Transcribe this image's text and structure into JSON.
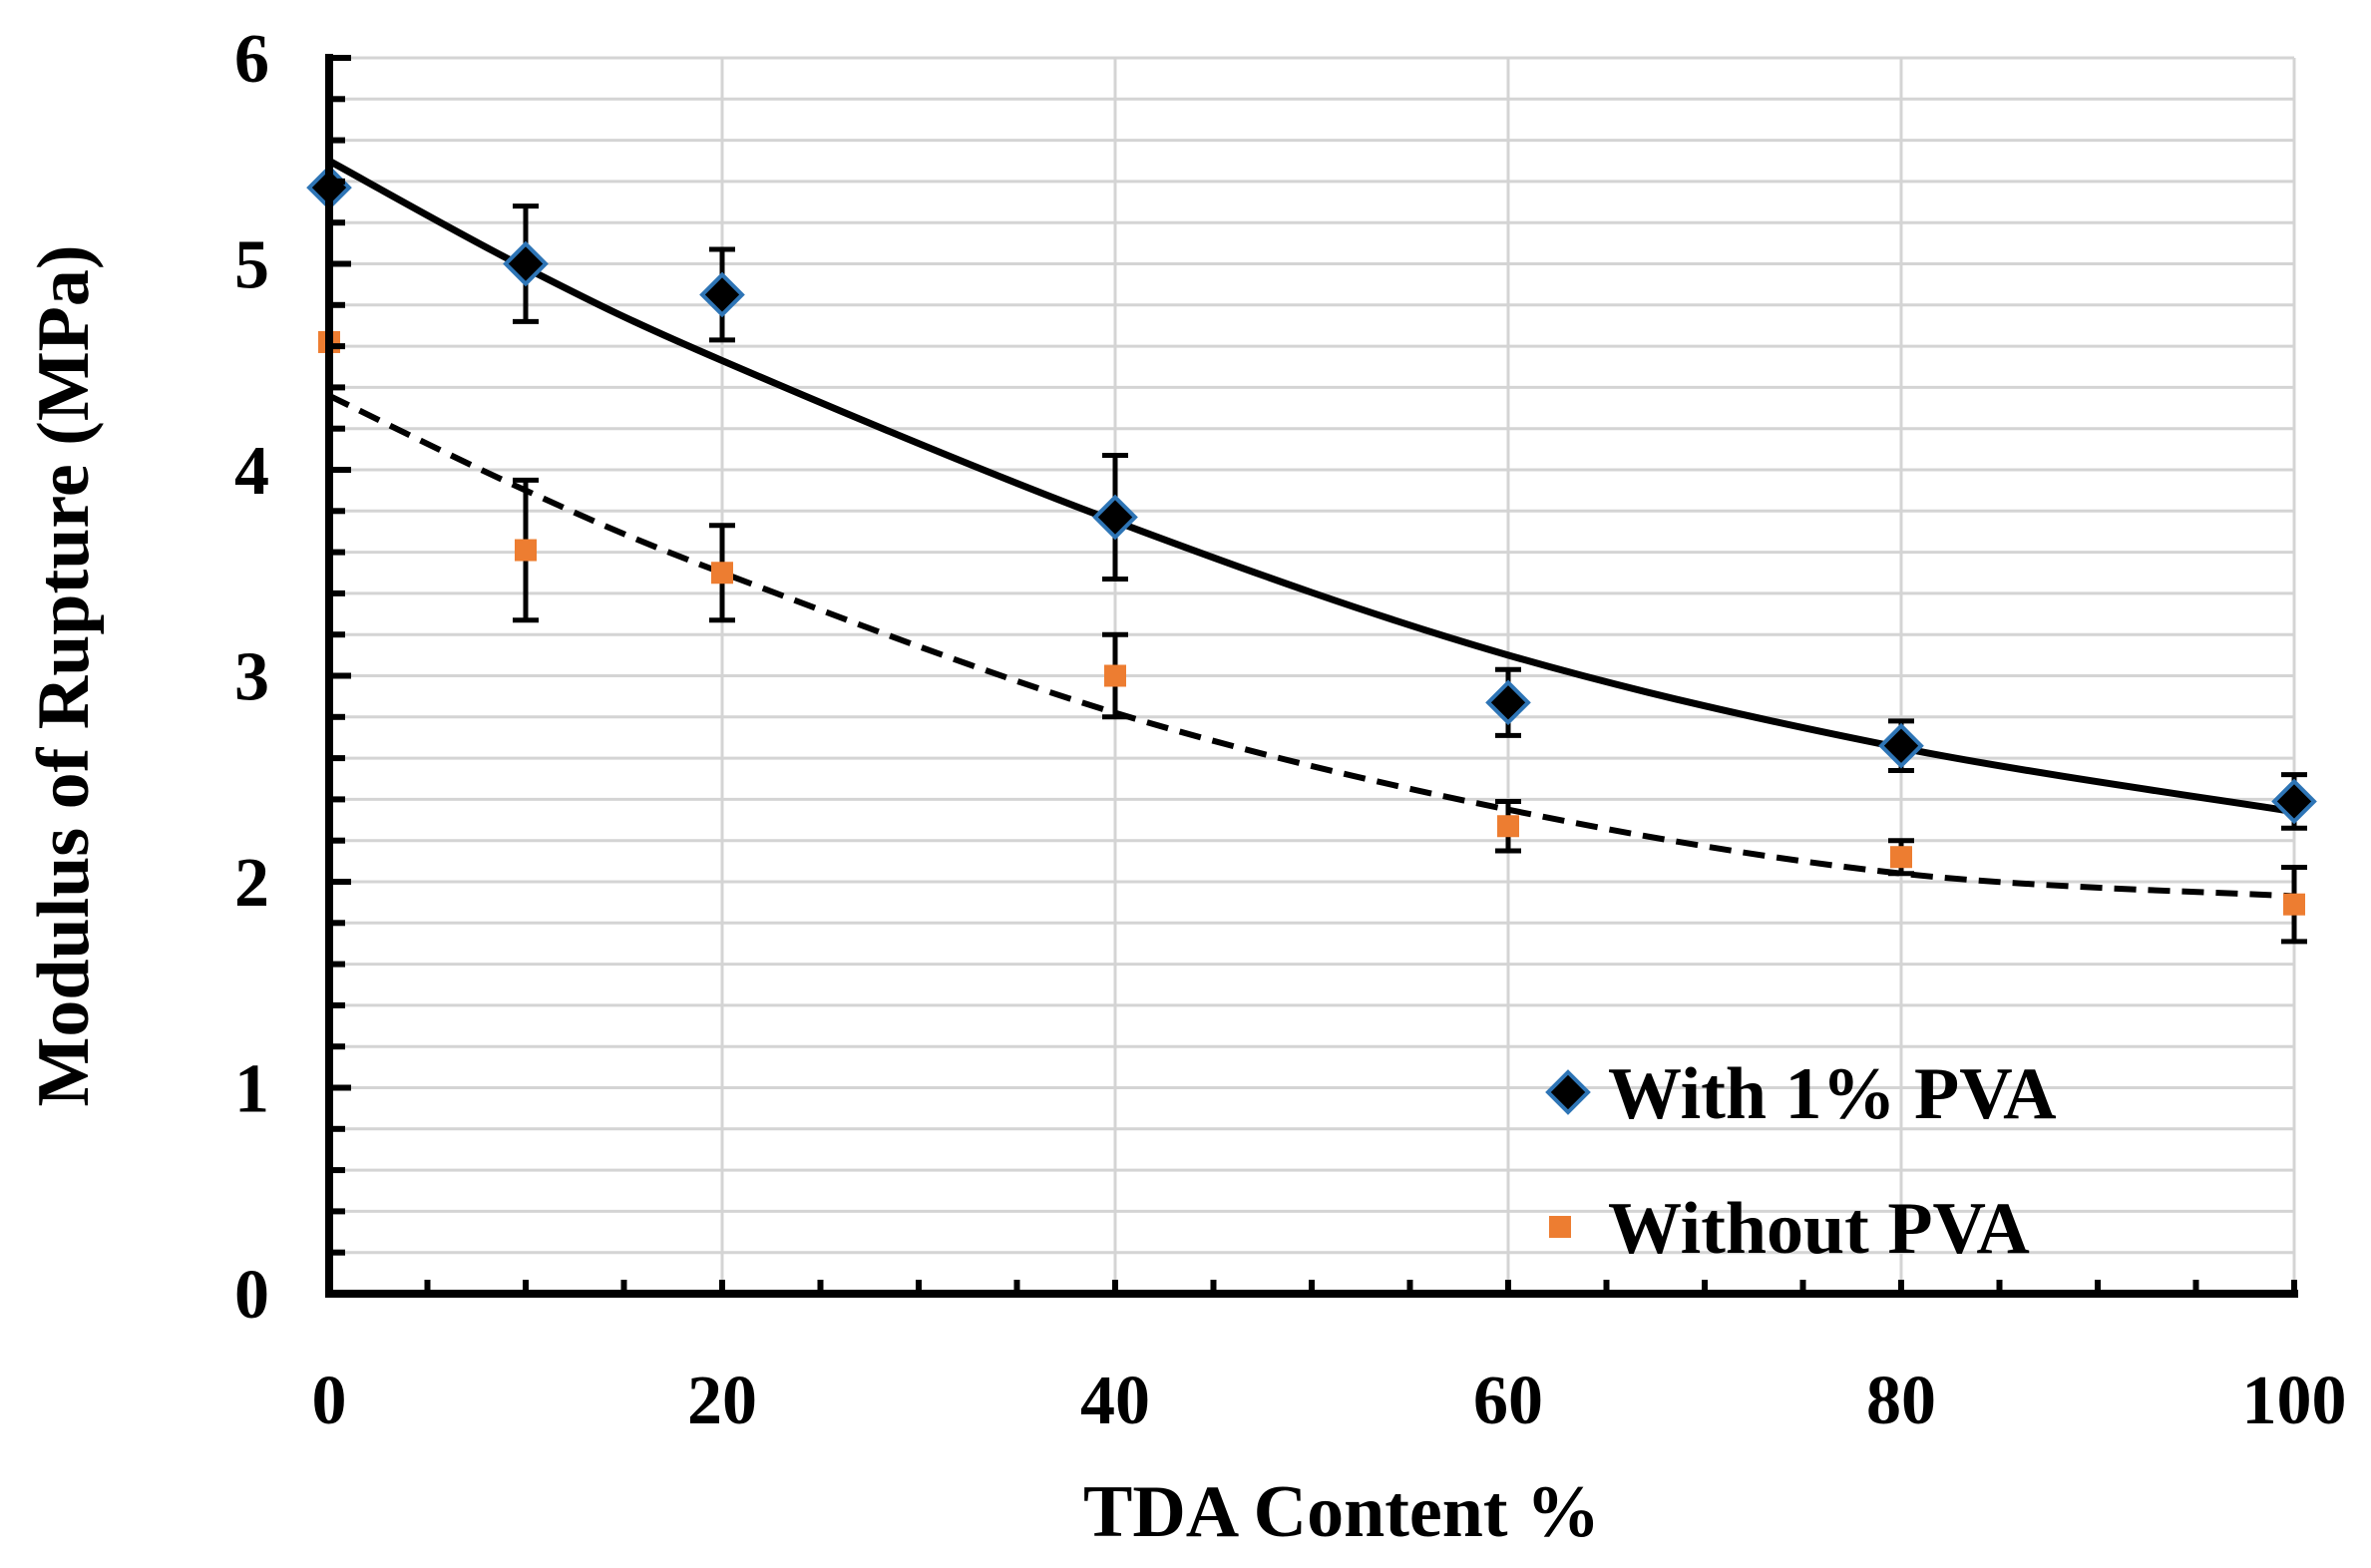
{
  "chart_data": {
    "type": "scatter",
    "title": "",
    "xlabel": "TDA Content %",
    "ylabel": "Modulus of Rupture  (MPa)",
    "xlim": [
      0,
      100
    ],
    "ylim": [
      0,
      6
    ],
    "x_ticks": [
      0,
      20,
      40,
      60,
      80,
      100
    ],
    "y_ticks": [
      0,
      1,
      2,
      3,
      4,
      5,
      6
    ],
    "grid": true,
    "legend_position": "bottom-right",
    "series": [
      {
        "name": "With 1% PVA",
        "marker": "diamond",
        "color": "#000000",
        "edge_color": "#2e75b6",
        "trend": "solid",
        "x": [
          0,
          10,
          20,
          40,
          60,
          80,
          100
        ],
        "values": [
          5.37,
          5.0,
          4.85,
          3.77,
          2.87,
          2.66,
          2.39
        ],
        "errors": [
          0.0,
          0.28,
          0.22,
          0.3,
          0.16,
          0.12,
          0.13
        ],
        "trend_values": [
          5.5,
          4.98,
          4.53,
          3.75,
          3.1,
          2.65,
          2.34
        ]
      },
      {
        "name": "Without PVA",
        "marker": "square",
        "color": "#ed7d31",
        "trend": "dashed",
        "x": [
          0,
          10,
          20,
          40,
          60,
          80,
          100
        ],
        "values": [
          4.62,
          3.61,
          3.5,
          3.0,
          2.27,
          2.12,
          1.89
        ],
        "errors": [
          0.0,
          0.34,
          0.23,
          0.2,
          0.12,
          0.08,
          0.18
        ],
        "trend_values": [
          4.36,
          3.9,
          3.5,
          2.82,
          2.35,
          2.04,
          1.93
        ]
      }
    ]
  }
}
